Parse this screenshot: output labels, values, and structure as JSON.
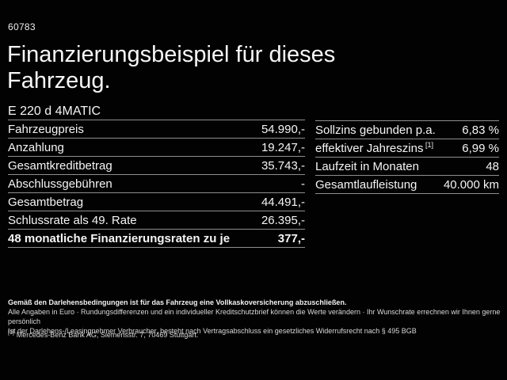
{
  "page": {
    "ref_number": "60783",
    "title": "Finanzierungsbeispiel für dieses Fahrzeug.",
    "model": "E 220 d 4MATIC"
  },
  "left_table": {
    "rows": [
      {
        "label": "Fahrzeugpreis",
        "value": "54.990,-",
        "bold": false
      },
      {
        "label": "Anzahlung",
        "value": "19.247,-",
        "bold": false
      },
      {
        "label": "Gesamtkreditbetrag",
        "value": "35.743,-",
        "bold": false
      },
      {
        "label": "Abschlussgebühren",
        "value": "-",
        "bold": false
      },
      {
        "label": "Gesamtbetrag",
        "value": "44.491,-",
        "bold": false
      },
      {
        "label": "Schlussrate als 49. Rate",
        "value": "26.395,-",
        "bold": false
      },
      {
        "label": "48 monatliche Finanzierungsraten zu je",
        "value": "377,-",
        "bold": true
      }
    ]
  },
  "right_table": {
    "rows": [
      {
        "label": "Sollzins gebunden p.a.",
        "sup": "",
        "value": "6,83 %",
        "bold": false
      },
      {
        "label": "effektiver Jahreszins",
        "sup": "[1]",
        "value": "6,99 %",
        "bold": false
      },
      {
        "label": "Laufzeit in Monaten",
        "sup": "",
        "value": "48",
        "bold": false
      },
      {
        "label": "Gesamtlaufleistung",
        "sup": "",
        "value": "40.000 km",
        "bold": false
      }
    ]
  },
  "fine_print": {
    "line1": "Gemäß den Darlehensbedingungen ist für das Fahrzeug eine Vollkaskoversicherung abzuschließen.",
    "line2": "Alle Angaben in Euro · Rundungsdifferenzen und ein individueller Kreditschutzbrief können die Werte verändern · Ihr Wunschrate errechnen wir Ihnen gerne persönlich",
    "line3": "Ist der Darlehens-/Leasingnehmer Verbraucher, besteht nach Vertragsabschluss ein gesetzliches Widerrufsrecht nach § 495 BGB",
    "footnote_marker": "[1]",
    "footnote_text": "Mercedes-Benz Bank AG, Siemensstr. 7, 70469 Stuttgart."
  },
  "colors": {
    "background": "#020202",
    "text": "#f5f5f5",
    "divider": "#8f8f8f"
  }
}
